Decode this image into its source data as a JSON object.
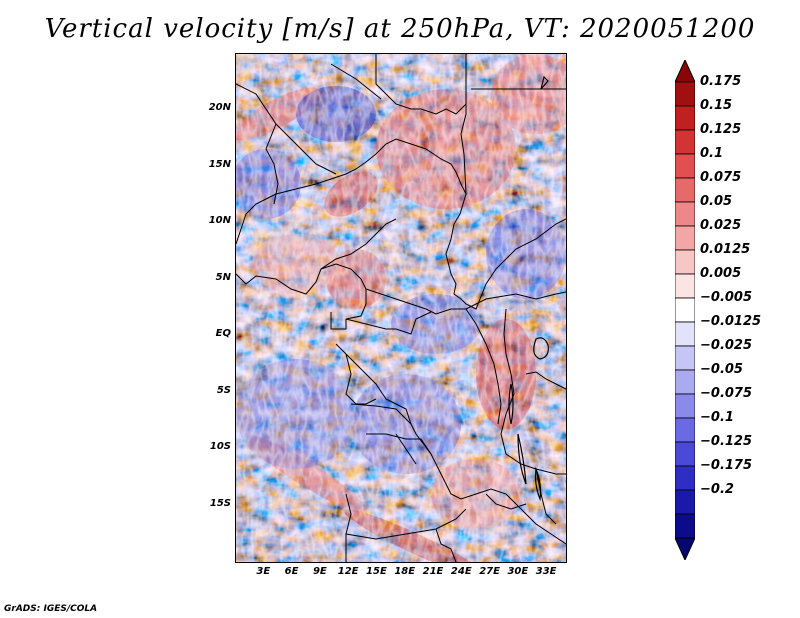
{
  "title": "Vertical velocity [m/s] at 250hPa, VT: 2020051200",
  "footer": "GrADS: IGES/COLA",
  "lat_labels": [
    {
      "label": "20N",
      "lat": 20
    },
    {
      "label": "15N",
      "lat": 15
    },
    {
      "label": "10N",
      "lat": 10
    },
    {
      "label": "5N",
      "lat": 5
    },
    {
      "label": "EQ",
      "lat": 0
    },
    {
      "label": "5S",
      "lat": -5
    },
    {
      "label": "10S",
      "lat": -10
    },
    {
      "label": "15S",
      "lat": -15
    }
  ],
  "lon_labels": [
    {
      "label": "3E",
      "lon": 3
    },
    {
      "label": "6E",
      "lon": 6
    },
    {
      "label": "9E",
      "lon": 9
    },
    {
      "label": "12E",
      "lon": 12
    },
    {
      "label": "15E",
      "lon": 15
    },
    {
      "label": "18E",
      "lon": 18
    },
    {
      "label": "21E",
      "lon": 21
    },
    {
      "label": "24E",
      "lon": 24
    },
    {
      "label": "27E",
      "lon": 27
    },
    {
      "label": "30E",
      "lon": 30
    },
    {
      "label": "33E",
      "lon": 33
    }
  ],
  "map_extent": {
    "lon_min": 0,
    "lon_max": 35,
    "lat_min": -20,
    "lat_max": 25
  },
  "colorbar": {
    "labels": [
      "0.175",
      "0.15",
      "0.125",
      "0.1",
      "0.075",
      "0.05",
      "0.025",
      "0.0125",
      "0.005",
      "−0.005",
      "−0.0125",
      "−0.025",
      "−0.05",
      "−0.075",
      "−0.1",
      "−0.125",
      "−0.175",
      "−0.2"
    ],
    "colors": [
      "#a01010",
      "#c02020",
      "#d23434",
      "#e05050",
      "#e56a6a",
      "#ee8888",
      "#f4a6a6",
      "#f9c6c6",
      "#fde4e4",
      "#ffffff",
      "#e2e2fb",
      "#c6c6f6",
      "#aaaaf0",
      "#8a8aea",
      "#6a6ae2",
      "#4a4ad6",
      "#2e2ec2",
      "#1a1aa8",
      "#0c0c88"
    ],
    "top_arrow_color": "#8a0606",
    "bottom_arrow_color": "#06066e"
  }
}
